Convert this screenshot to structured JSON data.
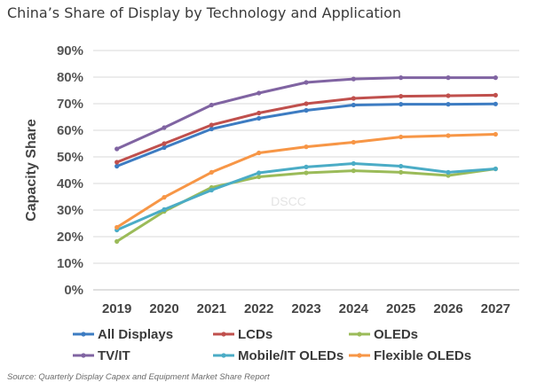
{
  "page": {
    "title": "China’s Share of Display by Technology and Application",
    "source": "Source: Quarterly Display Capex and Equipment Market Share Report",
    "watermark": "DSCC"
  },
  "chart_data": {
    "type": "line",
    "title": "China’s Share of Display by Technology and Application",
    "xlabel": "",
    "ylabel": "Capacity Share",
    "categories": [
      "2019",
      "2020",
      "2021",
      "2022",
      "2023",
      "2024",
      "2025",
      "2026",
      "2027"
    ],
    "y_ticks": [
      "0%",
      "10%",
      "20%",
      "30%",
      "40%",
      "50%",
      "60%",
      "70%",
      "80%",
      "90%"
    ],
    "ylim": [
      0,
      90
    ],
    "grid": "horizontal",
    "legend_position": "bottom",
    "series": [
      {
        "name": "All Displays",
        "color": "#3d7cc2",
        "values": [
          46.5,
          53.5,
          60.5,
          64.5,
          67.5,
          69.5,
          69.8,
          69.8,
          69.9
        ]
      },
      {
        "name": "LCDs",
        "color": "#c0504d",
        "values": [
          48,
          55,
          62,
          66.5,
          70,
          72,
          72.8,
          73,
          73.2
        ]
      },
      {
        "name": "OLEDs",
        "color": "#9bbb59",
        "values": [
          18.2,
          29.5,
          38.5,
          42.5,
          44,
          44.8,
          44.2,
          43,
          45.5
        ]
      },
      {
        "name": "TV/IT",
        "color": "#8064a2",
        "values": [
          53,
          61,
          69.5,
          74,
          78,
          79.3,
          79.8,
          79.8,
          79.8
        ]
      },
      {
        "name": "Mobile/IT OLEDs",
        "color": "#4bacc6",
        "values": [
          22.5,
          30.2,
          37.5,
          44,
          46.2,
          47.5,
          46.5,
          44.2,
          45.5
        ]
      },
      {
        "name": "Flexible OLEDs",
        "color": "#f79646",
        "values": [
          23.5,
          34.8,
          44.2,
          51.5,
          53.8,
          55.5,
          57.5,
          58,
          58.5
        ]
      }
    ]
  }
}
